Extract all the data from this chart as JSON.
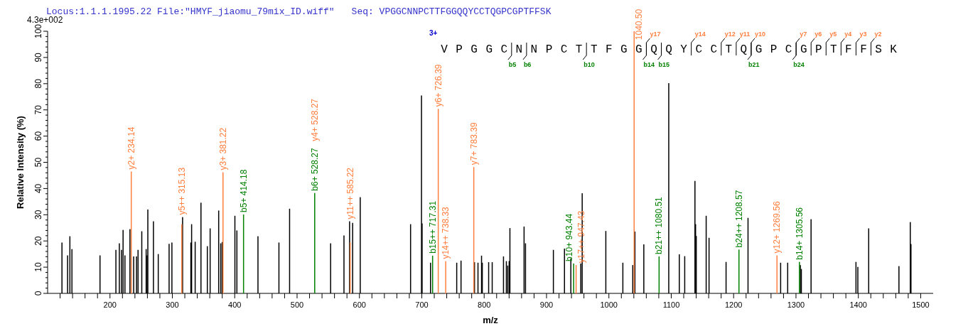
{
  "chart_data": {
    "type": "bar",
    "title": "Locus:1.1.1.1995.22 File:\"HMYF_jiaomu_79mix_ID.wiff\"",
    "subtitle": "Seq: VPGGCNNPCTTFGGQQYCCTQGPCGPTFFSK",
    "xlabel": "m/z",
    "ylabel": "Relative Intensity (%)",
    "xlim": [
      100,
      1520
    ],
    "ylim": [
      0,
      100
    ],
    "xticks": [
      {
        "value": 120,
        "label": null
      },
      {
        "value": 140,
        "label": null
      },
      {
        "value": 160,
        "label": null
      },
      {
        "value": 180,
        "label": null
      },
      200,
      {
        "value": 220,
        "label": null
      },
      {
        "value": 240,
        "label": null
      },
      {
        "value": 260,
        "label": null
      },
      {
        "value": 280,
        "label": null
      },
      300,
      {
        "value": 320,
        "label": null
      },
      {
        "value": 340,
        "label": null
      },
      {
        "value": 360,
        "label": null
      },
      {
        "value": 380,
        "label": null
      },
      400,
      {
        "value": 420,
        "label": null
      },
      {
        "value": 440,
        "label": null
      },
      {
        "value": 460,
        "label": null
      },
      {
        "value": 480,
        "label": null
      },
      500,
      {
        "value": 520,
        "label": null
      },
      {
        "value": 540,
        "label": null
      },
      {
        "value": 560,
        "label": null
      },
      {
        "value": 580,
        "label": null
      },
      600,
      {
        "value": 620,
        "label": null
      },
      {
        "value": 640,
        "label": null
      },
      {
        "value": 660,
        "label": null
      },
      {
        "value": 680,
        "label": null
      },
      700,
      {
        "value": 720,
        "label": null
      },
      {
        "value": 740,
        "label": null
      },
      {
        "value": 760,
        "label": null
      },
      {
        "value": 780,
        "label": null
      },
      800,
      {
        "value": 820,
        "label": null
      },
      {
        "value": 840,
        "label": null
      },
      {
        "value": 860,
        "label": null
      },
      {
        "value": 880,
        "label": null
      },
      900,
      {
        "value": 920,
        "label": null
      },
      {
        "value": 940,
        "label": null
      },
      {
        "value": 960,
        "label": null
      },
      {
        "value": 980,
        "label": null
      },
      1000,
      {
        "value": 1020,
        "label": null
      },
      {
        "value": 1040,
        "label": null
      },
      {
        "value": 1060,
        "label": null
      },
      {
        "value": 1080,
        "label": null
      },
      1100,
      {
        "value": 1120,
        "label": null
      },
      {
        "value": 1140,
        "label": null
      },
      {
        "value": 1160,
        "label": null
      },
      {
        "value": 1180,
        "label": null
      },
      1200,
      {
        "value": 1220,
        "label": null
      },
      {
        "value": 1240,
        "label": null
      },
      {
        "value": 1260,
        "label": null
      },
      {
        "value": 1280,
        "label": null
      },
      1300,
      {
        "value": 1320,
        "label": null
      },
      {
        "value": 1340,
        "label": null
      },
      {
        "value": 1360,
        "label": null
      },
      {
        "value": 1380,
        "label": null
      },
      1400,
      {
        "value": 1420,
        "label": null
      },
      {
        "value": 1440,
        "label": null
      },
      {
        "value": 1460,
        "label": null
      },
      {
        "value": 1480,
        "label": null
      },
      1500
    ],
    "yticks": [
      0,
      {
        "value": 2,
        "label": null
      },
      {
        "value": 4,
        "label": null
      },
      {
        "value": 6,
        "label": null
      },
      {
        "value": 8,
        "label": null
      },
      10,
      {
        "value": 12,
        "label": null
      },
      {
        "value": 14,
        "label": null
      },
      {
        "value": 16,
        "label": null
      },
      {
        "value": 18,
        "label": null
      },
      20,
      {
        "value": 22,
        "label": null
      },
      {
        "value": 24,
        "label": null
      },
      {
        "value": 26,
        "label": null
      },
      {
        "value": 28,
        "label": null
      },
      30,
      {
        "value": 32,
        "label": null
      },
      {
        "value": 34,
        "label": null
      },
      {
        "value": 36,
        "label": null
      },
      {
        "value": 38,
        "label": null
      },
      40,
      {
        "value": 42,
        "label": null
      },
      {
        "value": 44,
        "label": null
      },
      {
        "value": 46,
        "label": null
      },
      {
        "value": 48,
        "label": null
      },
      50,
      {
        "value": 52,
        "label": null
      },
      {
        "value": 54,
        "label": null
      },
      {
        "value": 56,
        "label": null
      },
      {
        "value": 58,
        "label": null
      },
      60,
      {
        "value": 62,
        "label": null
      },
      {
        "value": 64,
        "label": null
      },
      {
        "value": 66,
        "label": null
      },
      {
        "value": 68,
        "label": null
      },
      70,
      {
        "value": 72,
        "label": null
      },
      {
        "value": 74,
        "label": null
      },
      {
        "value": 76,
        "label": null
      },
      {
        "value": 78,
        "label": null
      },
      80,
      {
        "value": 82,
        "label": null
      },
      {
        "value": 84,
        "label": null
      },
      {
        "value": 86,
        "label": null
      },
      {
        "value": 88,
        "label": null
      },
      90,
      {
        "value": 92,
        "label": null
      },
      {
        "value": 94,
        "label": null
      },
      {
        "value": 96,
        "label": null
      },
      {
        "value": 98,
        "label": null
      },
      100
    ],
    "series": [
      {
        "color": "#000000",
        "x": [
          123,
          132,
          135.7,
          139,
          184,
          209.5,
          215,
          218.5,
          221,
          224,
          232,
          238,
          242.5,
          245,
          251,
          258,
          259.5,
          260.7,
          269.7,
          277.4,
          294.8,
          299.3,
          316.4,
          329.7,
          330.9,
          336.6,
          345.9,
          356.1,
          360.6,
          374.3,
          377.6,
          380,
          400.3,
          403.5,
          437.3,
          470.9,
          488,
          553.8,
          575.2,
          584.2,
          589.1,
          601.3,
          682,
          699.5,
          700.5,
          714,
          756,
          762.9,
          784.5,
          790.1,
          795.8,
          797,
          807.2,
          812.9,
          831,
          835.6,
          837.8,
          840.1,
          841.3,
          864,
          866.3,
          911,
          928.8,
          939,
          954.9,
          957.2,
          995.1,
          1022.4,
          1038.3,
          1041.7,
          1056,
          1096,
          1112.9,
          1121.6,
          1138,
          1139,
          1140.1,
          1156,
          1160.6,
          1187.9,
          1223.1,
          1275.4,
          1286.7,
          1307,
          1308.6,
          1324.2,
          1396.2,
          1399.2,
          1416.6,
          1465.1,
          1483.3,
          1484.4
        ],
        "values": [
          19.4,
          14.5,
          21.8,
          16.9,
          14.5,
          16.6,
          19.1,
          16.6,
          24.2,
          14.5,
          24.5,
          14.1,
          14.1,
          16.6,
          23.7,
          16.9,
          14.5,
          32.0,
          27.5,
          15.0,
          18.9,
          19.4,
          29.1,
          19.4,
          26.4,
          19.7,
          34.6,
          18.0,
          24.8,
          31.6,
          19.1,
          19.6,
          29.6,
          24.0,
          21.8,
          19.4,
          32.3,
          19.1,
          22.1,
          27.5,
          26.9,
          36.7,
          26.4,
          75.5,
          26.7,
          11.7,
          11.7,
          12.5,
          11.9,
          11.7,
          14.4,
          11.7,
          11.9,
          11.9,
          14.1,
          12.3,
          10.6,
          12.3,
          24.9,
          25.5,
          19.1,
          16.6,
          17.1,
          13.3,
          11.4,
          38.2,
          23.8,
          11.7,
          10.8,
          23.6,
          18.7,
          80.2,
          14.9,
          14.2,
          42.9,
          26.4,
          21.9,
          29.6,
          21.2,
          12.0,
          28.8,
          11.7,
          11.7,
          10.8,
          9.3,
          28.3,
          12.0,
          10.1,
          24.8,
          10.4,
          27.2,
          18.8
        ]
      },
      {
        "color": "#ff7f3f",
        "x": [
          234.14,
          315.13,
          381.22,
          585.22,
          726.39,
          738.33,
          783.39,
          947.43,
          1040.5,
          1269.56
        ],
        "values": [
          46.5,
          26.4,
          46.2,
          19.5,
          70.4,
          12.3,
          48.2,
          10.8,
          100,
          14.5
        ]
      },
      {
        "color": "#008000",
        "x": [
          414.18,
          528.27,
          717.31,
          943.44,
          1080.51,
          1208.57,
          1305.56
        ],
        "values": [
          30.1,
          38.3,
          14.4,
          11.4,
          14.1,
          16.7,
          12.0
        ]
      }
    ],
    "annotations": [
      "4.3e+002",
      "3+",
      "VPGGCNNPCTTFGGQQYCCTQGPCGPTFFSK",
      "y4+ 528.27",
      "b5",
      "b6",
      "b10",
      "b14",
      "b15",
      "b21",
      "b24",
      "y17",
      "y14",
      "y12",
      "y11",
      "y10",
      "y7",
      "y6",
      "y5",
      "y4",
      "y3",
      "y2",
      {
        "text": "y2+ 234.14",
        "x": 234.14,
        "y": 46.5
      },
      {
        "text": "y5++ 315.13",
        "x": 315.13,
        "y": 26.4
      },
      {
        "text": "y3+ 381.22",
        "x": 381.22,
        "y": 46.2
      },
      {
        "text": "b5+ 414.18",
        "x": 414.18,
        "y": 30.1
      },
      {
        "text": "b6+ 528.27",
        "x": 528.27,
        "y": 38.3
      },
      {
        "text": "y11++ 585.22",
        "x": 585.22,
        "y": 19.5
      },
      {
        "text": "b15++ 717.31",
        "x": 717.31,
        "y": 14.4
      },
      {
        "text": "y6+ 726.39",
        "x": 726.39,
        "y": 70.4
      },
      {
        "text": "y14++ 738.33",
        "x": 738.33,
        "y": 12.3
      },
      {
        "text": "y7+ 783.39",
        "x": 783.39,
        "y": 48.2
      },
      {
        "text": "b10+ 943.44",
        "x": 943.44,
        "y": 11.4
      },
      {
        "text": "y17++ 947.43",
        "x": 947.43,
        "y": 10.8
      },
      {
        "text": "1040.50",
        "x": 1040.5,
        "y": 100
      },
      {
        "text": "b21++ 1080.51",
        "x": 1080.51,
        "y": 14.1
      },
      {
        "text": "b24++ 1208.57",
        "x": 1208.57,
        "y": 16.7
      },
      {
        "text": "y12+ 1269.56",
        "x": 1269.56,
        "y": 14.5
      },
      {
        "text": "b14+ 1305.56",
        "x": 1305.56,
        "y": 12.0
      }
    ]
  }
}
